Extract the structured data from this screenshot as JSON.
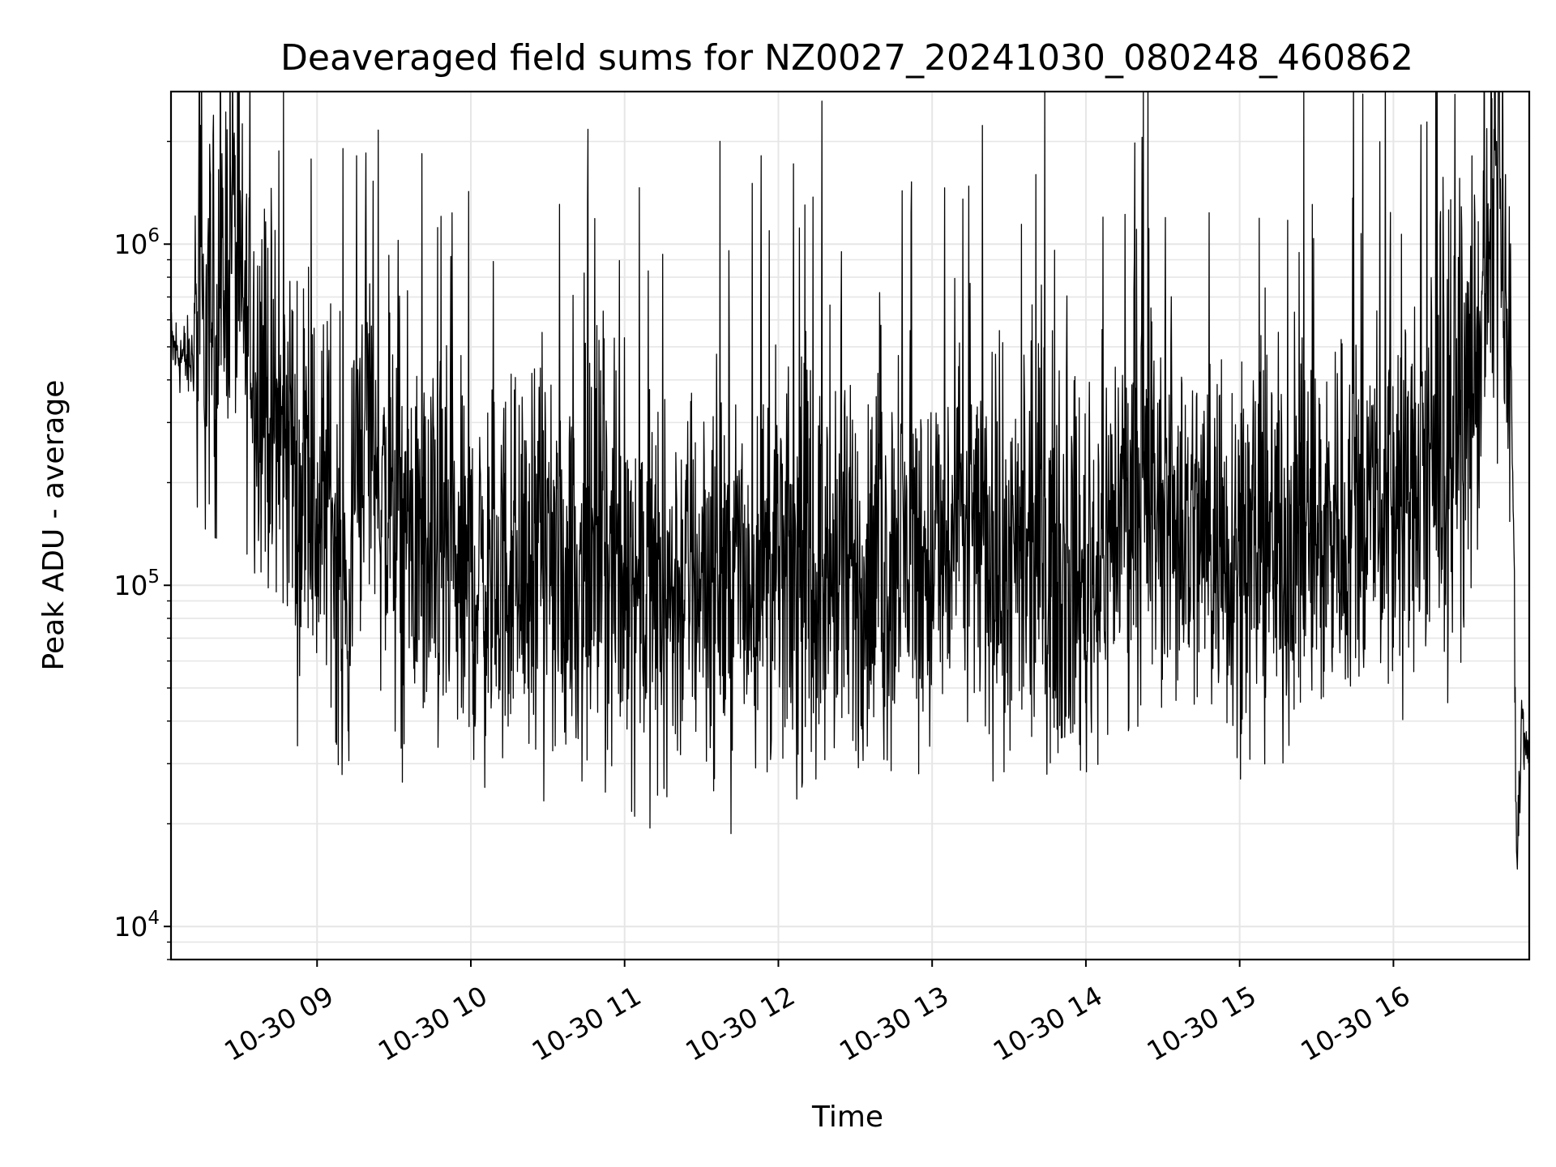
{
  "chart_data": {
    "type": "line",
    "title": "Deaveraged field sums for NZ0027_20241030_080248_460862",
    "xlabel": "Time",
    "ylabel": "Peak ADU - average",
    "yscale": "log",
    "ylim": [
      8000,
      2800000
    ],
    "xlim": [
      "2024-10-30 08:03",
      "2024-10-30 16:53"
    ],
    "grid": true,
    "line_color": "#000000",
    "grid_color": "#e6e6e6",
    "x_ticks": [
      {
        "value": "2024-10-30 09:00",
        "label": "10-30 09"
      },
      {
        "value": "2024-10-30 10:00",
        "label": "10-30 10"
      },
      {
        "value": "2024-10-30 11:00",
        "label": "10-30 11"
      },
      {
        "value": "2024-10-30 12:00",
        "label": "10-30 12"
      },
      {
        "value": "2024-10-30 13:00",
        "label": "10-30 13"
      },
      {
        "value": "2024-10-30 14:00",
        "label": "10-30 14"
      },
      {
        "value": "2024-10-30 15:00",
        "label": "10-30 15"
      },
      {
        "value": "2024-10-30 16:00",
        "label": "10-30 16"
      }
    ],
    "y_ticks": [
      {
        "value": 10000,
        "base": "10",
        "exp": "4"
      },
      {
        "value": 100000,
        "base": "10",
        "exp": "5"
      },
      {
        "value": 1000000,
        "base": "10",
        "exp": "6"
      }
    ],
    "series": [
      {
        "x": [
          "2024-10-30 08:03",
          "2024-10-30 08:10",
          "2024-10-30 08:15",
          "2024-10-30 08:20",
          "2024-10-30 08:23",
          "2024-10-30 08:25",
          "2024-10-30 08:27",
          "2024-10-30 08:28",
          "2024-10-30 08:30",
          "2024-10-30 08:32",
          "2024-10-30 08:34",
          "2024-10-30 08:36",
          "2024-10-30 08:38",
          "2024-10-30 08:40",
          "2024-10-30 08:43",
          "2024-10-30 08:46",
          "2024-10-30 08:50",
          "2024-10-30 08:53",
          "2024-10-30 08:55",
          "2024-10-30 09:00",
          "2024-10-30 09:05",
          "2024-10-30 09:10",
          "2024-10-30 09:12",
          "2024-10-30 09:15",
          "2024-10-30 09:20",
          "2024-10-30 09:25",
          "2024-10-30 09:30",
          "2024-10-30 09:35",
          "2024-10-30 09:40",
          "2024-10-30 09:45",
          "2024-10-30 09:50",
          "2024-10-30 09:55",
          "2024-10-30 10:00",
          "2024-10-30 10:05",
          "2024-10-30 10:15",
          "2024-10-30 10:30",
          "2024-10-30 10:45",
          "2024-10-30 11:00",
          "2024-10-30 11:15",
          "2024-10-30 11:30",
          "2024-10-30 11:45",
          "2024-10-30 12:00",
          "2024-10-30 12:15",
          "2024-10-30 12:30",
          "2024-10-30 12:45",
          "2024-10-30 12:50",
          "2024-10-30 13:00",
          "2024-10-30 13:15",
          "2024-10-30 13:30",
          "2024-10-30 13:45",
          "2024-10-30 14:00",
          "2024-10-30 14:15",
          "2024-10-30 14:30",
          "2024-10-30 14:45",
          "2024-10-30 15:00",
          "2024-10-30 15:15",
          "2024-10-30 15:30",
          "2024-10-30 15:45",
          "2024-10-30 16:00",
          "2024-10-30 16:15",
          "2024-10-30 16:25",
          "2024-10-30 16:30",
          "2024-10-30 16:35",
          "2024-10-30 16:38",
          "2024-10-30 16:40",
          "2024-10-30 16:42",
          "2024-10-30 16:44",
          "2024-10-30 16:46",
          "2024-10-30 16:47",
          "2024-10-30 16:48",
          "2024-10-30 16:50",
          "2024-10-30 16:53"
        ],
        "y": [
          500000,
          450000,
          520000,
          560000,
          700000,
          1000000,
          1500000,
          900000,
          700000,
          550000,
          600000,
          400000,
          450000,
          350000,
          300000,
          250000,
          300000,
          150000,
          250000,
          150000,
          200000,
          90000,
          60000,
          250000,
          350000,
          180000,
          150000,
          120000,
          130000,
          110000,
          120000,
          100000,
          110000,
          100000,
          110000,
          105000,
          110000,
          110000,
          90000,
          110000,
          100000,
          110000,
          100000,
          100000,
          110000,
          130000,
          110000,
          150000,
          100000,
          120000,
          100000,
          180000,
          160000,
          140000,
          130000,
          130000,
          140000,
          160000,
          170000,
          200000,
          260000,
          350000,
          550000,
          1000000,
          1600000,
          900000,
          550000,
          400000,
          130000,
          15000,
          40000,
          30000
        ]
      }
    ]
  }
}
